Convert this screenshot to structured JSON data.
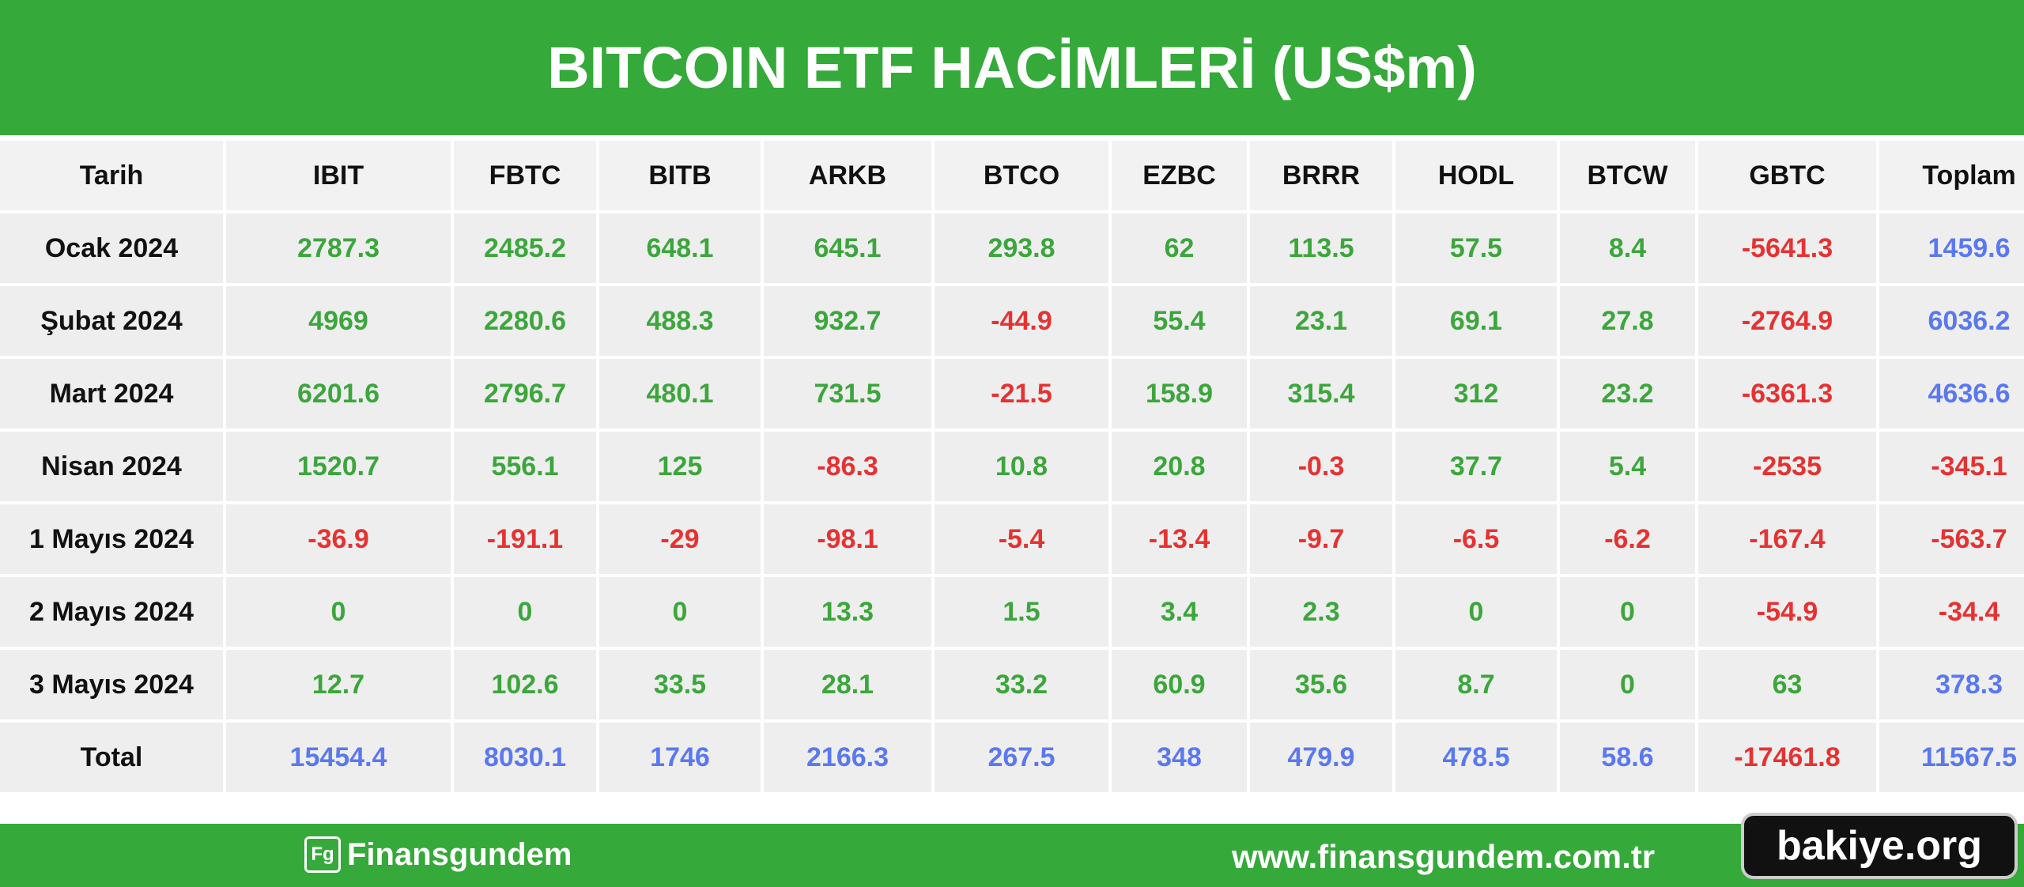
{
  "header": {
    "title": "BITCOIN ETF HACİMLERİ (US$m)"
  },
  "table": {
    "columns": [
      "Tarih",
      "IBIT",
      "FBTC",
      "BITB",
      "ARKB",
      "BTCO",
      "EZBC",
      "BRRR",
      "HODL",
      "BTCW",
      "GBTC",
      "Toplam"
    ],
    "rows": [
      [
        "Ocak 2024",
        2787.3,
        2485.2,
        648.1,
        645.1,
        293.8,
        62,
        113.5,
        57.5,
        8.4,
        -5641.3,
        1459.6
      ],
      [
        "Şubat 2024",
        4969,
        2280.6,
        488.3,
        932.7,
        -44.9,
        55.4,
        23.1,
        69.1,
        27.8,
        -2764.9,
        6036.2
      ],
      [
        "Mart 2024",
        6201.6,
        2796.7,
        480.1,
        731.5,
        -21.5,
        158.9,
        315.4,
        312,
        23.2,
        -6361.3,
        4636.6
      ],
      [
        "Nisan 2024",
        1520.7,
        556.1,
        125,
        -86.3,
        10.8,
        20.8,
        -0.3,
        37.7,
        5.4,
        -2535,
        -345.1
      ],
      [
        "1 Mayıs 2024",
        -36.9,
        -191.1,
        -29,
        -98.1,
        -5.4,
        -13.4,
        -9.7,
        -6.5,
        -6.2,
        -167.4,
        -563.7
      ],
      [
        "2 Mayıs 2024",
        0,
        0,
        0,
        13.3,
        1.5,
        3.4,
        2.3,
        0,
        0,
        -54.9,
        -34.4
      ],
      [
        "3 Mayıs 2024",
        12.7,
        102.6,
        33.5,
        28.1,
        33.2,
        60.9,
        35.6,
        8.7,
        0,
        63,
        378.3
      ]
    ],
    "total": [
      "Total",
      15454.4,
      8030.1,
      1746,
      2166.3,
      267.5,
      348,
      479.9,
      478.5,
      58.6,
      -17461.8,
      11567.5
    ],
    "colors": {
      "positive": "#3ca63c",
      "negative": "#e63232",
      "total": "#5a78f0"
    }
  },
  "footer": {
    "logo": "Finansgundem",
    "url": "www.finansgundem.com.tr",
    "watermark": "bakiye.org"
  }
}
